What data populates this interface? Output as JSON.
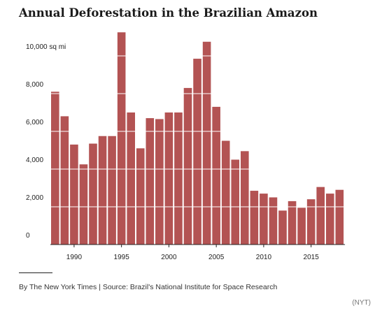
{
  "title": "Annual Deforestation in the Brazilian Amazon",
  "source": "By The New York Times | Source: Brazil's National Institute for Space Research",
  "credit": "(NYT)",
  "bar_color": "#b35353",
  "chart_data": {
    "type": "bar",
    "title": "Annual Deforestation in the Brazilian Amazon",
    "xlabel": "",
    "ylabel": "",
    "ylim": [
      0,
      11300
    ],
    "x": [
      1988,
      1989,
      1990,
      1991,
      1992,
      1993,
      1994,
      1995,
      1996,
      1997,
      1998,
      1999,
      2000,
      2001,
      2002,
      2003,
      2004,
      2005,
      2006,
      2007,
      2008,
      2009,
      2010,
      2011,
      2012,
      2013,
      2014,
      2015,
      2016,
      2017,
      2018
    ],
    "values": [
      8100,
      6800,
      5300,
      4250,
      5350,
      5750,
      5750,
      11250,
      7000,
      5100,
      6700,
      6650,
      7000,
      7000,
      8300,
      9850,
      10750,
      7300,
      5500,
      4500,
      4950,
      2850,
      2700,
      2500,
      1800,
      2300,
      1950,
      2400,
      3050,
      2700,
      2900
    ],
    "x_ticks": [
      1990,
      1995,
      2000,
      2005,
      2010,
      2015
    ],
    "x_tick_labels": [
      "1990",
      "1995",
      "2000",
      "2005",
      "2010",
      "2015"
    ],
    "y_ticks": [
      0,
      2000,
      4000,
      6000,
      8000,
      10000
    ],
    "y_tick_labels": [
      "0",
      "2,000",
      "4,000",
      "6,000",
      "8,000",
      "10,000 sq mi"
    ],
    "grid": true
  }
}
